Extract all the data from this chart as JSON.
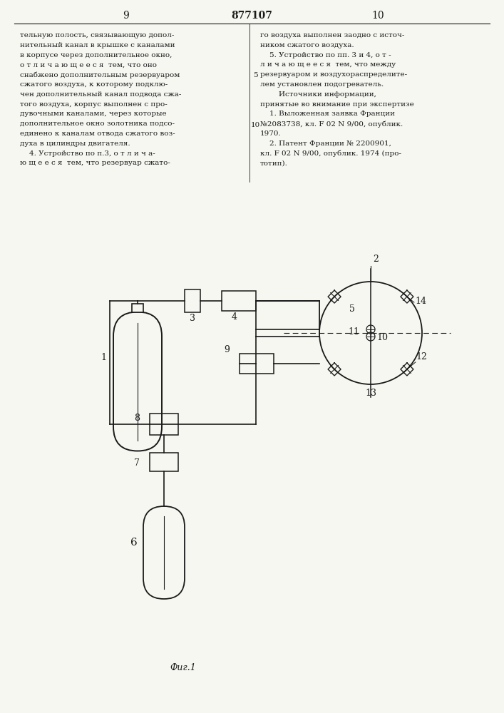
{
  "bg_color": "#f7f7f2",
  "text_color": "#1a1a1a",
  "line_color": "#1a1a1a",
  "page_number_left": "9",
  "page_number_center": "877107",
  "page_number_right": "10"
}
